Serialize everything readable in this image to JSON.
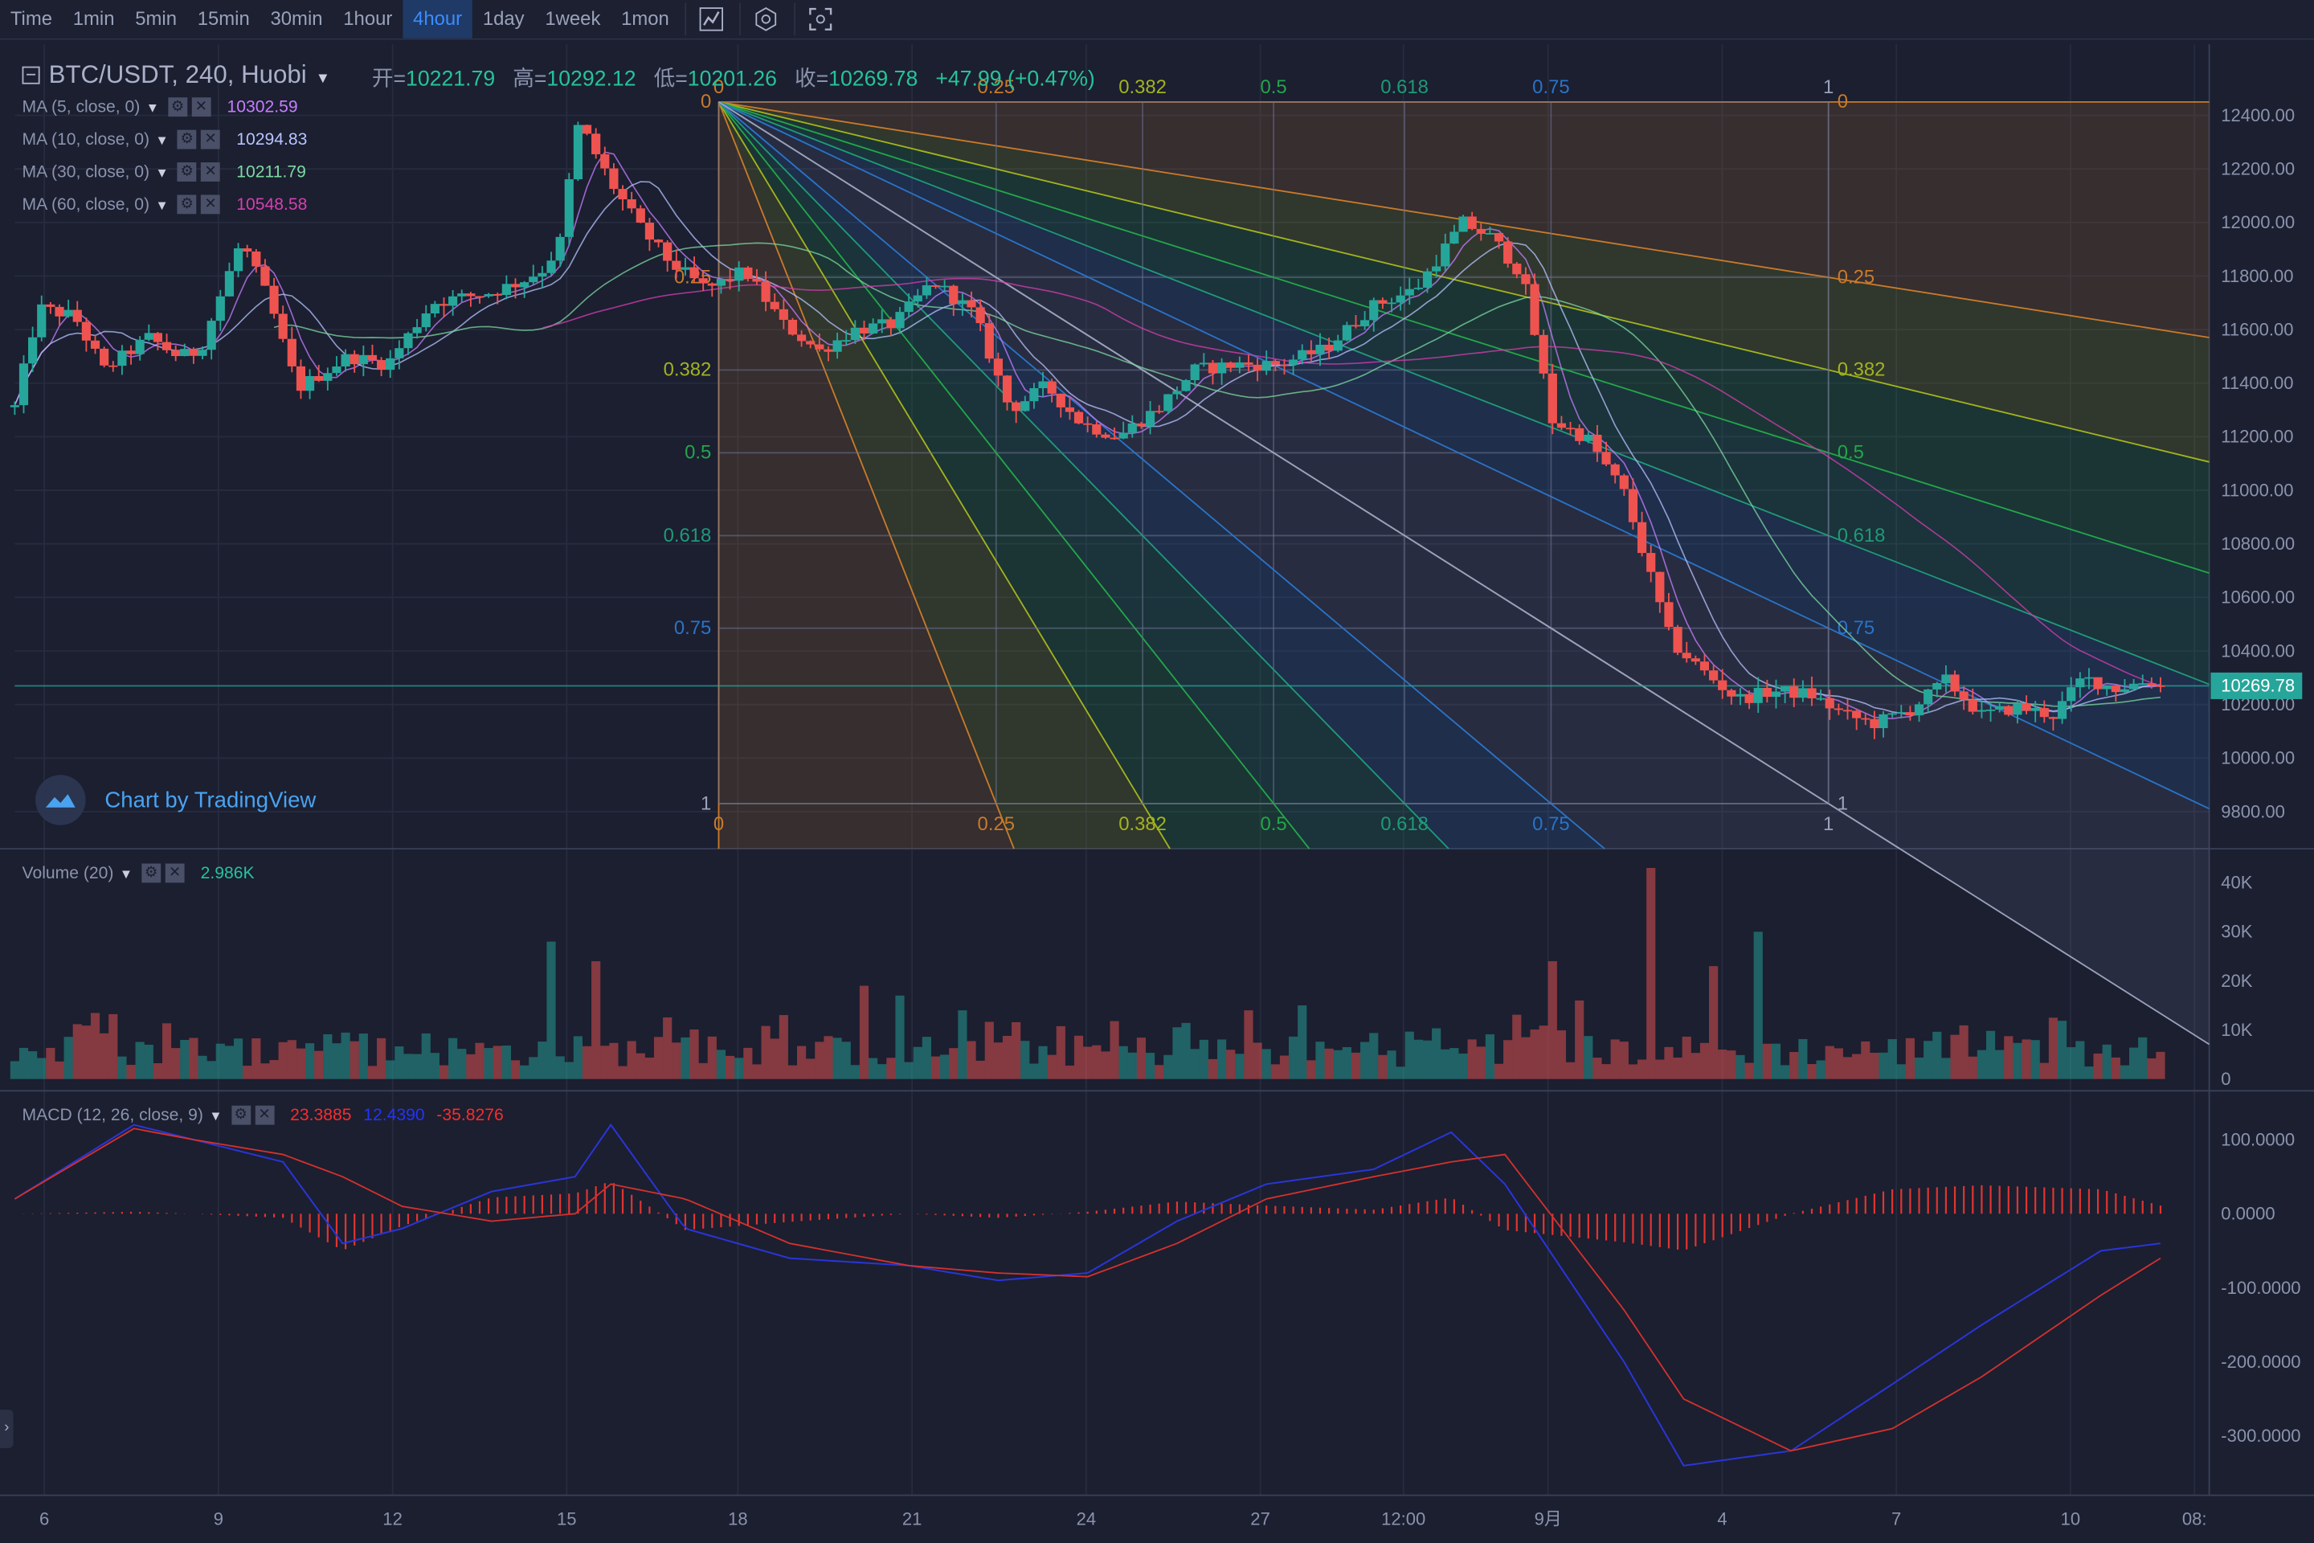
{
  "toolbar": {
    "items": [
      "Time",
      "1min",
      "5min",
      "15min",
      "30min",
      "1hour",
      "4hour",
      "1day",
      "1week",
      "1mon"
    ],
    "active": "4hour",
    "icons": [
      "indicator-icon",
      "settings-icon",
      "screenshot-icon"
    ]
  },
  "header": {
    "symbol": "BTC/USDT, 240, Huobi",
    "open_label": "开=",
    "open": "10221.79",
    "high_label": "高=",
    "high": "10292.12",
    "low_label": "低=",
    "low": "10201.26",
    "close_label": "收=",
    "close": "10269.78",
    "change": "+47.99 (+0.47%)"
  },
  "ma_legend": [
    {
      "name": "MA (5, close, 0)",
      "value": "10302.59",
      "color": "#c77dff"
    },
    {
      "name": "MA (10, close, 0)",
      "value": "10294.83",
      "color": "#b7c4ff"
    },
    {
      "name": "MA (30, close, 0)",
      "value": "10211.79",
      "color": "#7ed9a0"
    },
    {
      "name": "MA (60, close, 0)",
      "value": "10548.58",
      "color": "#d63fb0"
    }
  ],
  "volume_legend": {
    "name": "Volume (20)",
    "value": "2.986K",
    "color": "#26c39a"
  },
  "macd_legend": {
    "name": "MACD (12, 26, close, 9)",
    "values": [
      "23.3885",
      "12.4390",
      "-35.8276"
    ],
    "colors": [
      "#ff2a2a",
      "#2233ff",
      "#ff2a2a"
    ]
  },
  "watermark": "Chart by TradingView",
  "last_price": "10269.78",
  "colors": {
    "up": "#26a69a",
    "down": "#ef5350",
    "bg": "#1b1f30",
    "grid": "#2a2f45"
  },
  "chart_data": [
    {
      "type": "candlestick",
      "title": "BTC/USDT, 240, Huobi",
      "y_ticks": [
        "12400.00",
        "12200.00",
        "12000.00",
        "11800.00",
        "11600.00",
        "11400.00",
        "11200.00",
        "11000.00",
        "10800.00",
        "10600.00",
        "10400.00",
        "10200.00",
        "10000.00",
        "9800.00"
      ],
      "ylim": [
        9700,
        12500
      ],
      "x_ticks": [
        "6",
        "9",
        "12",
        "15",
        "18",
        "21",
        "24",
        "27",
        "12:00",
        "9月",
        "4",
        "7",
        "10",
        "08:"
      ],
      "last_price": 10269.78,
      "fib_levels": [
        "0",
        "0.25",
        "0.382",
        "0.5",
        "0.618",
        "0.75",
        "1"
      ],
      "fan_anchor": 12450,
      "fan_low": 9830,
      "keypoints": [
        [
          0,
          11310
        ],
        [
          8,
          11680
        ],
        [
          20,
          11650
        ],
        [
          30,
          11450
        ],
        [
          45,
          11570
        ],
        [
          55,
          11500
        ],
        [
          62,
          11520
        ],
        [
          76,
          11930
        ],
        [
          85,
          11720
        ],
        [
          95,
          11380
        ],
        [
          112,
          11500
        ],
        [
          125,
          11470
        ],
        [
          140,
          11700
        ],
        [
          160,
          11740
        ],
        [
          170,
          11780
        ],
        [
          178,
          11830
        ],
        [
          184,
          11950
        ],
        [
          188,
          12350
        ],
        [
          190,
          12360
        ],
        [
          200,
          12150
        ],
        [
          210,
          11980
        ],
        [
          220,
          11850
        ],
        [
          232,
          11750
        ],
        [
          245,
          11820
        ],
        [
          258,
          11620
        ],
        [
          270,
          11520
        ],
        [
          282,
          11600
        ],
        [
          295,
          11620
        ],
        [
          308,
          11780
        ],
        [
          322,
          11660
        ],
        [
          334,
          11300
        ],
        [
          346,
          11390
        ],
        [
          358,
          11250
        ],
        [
          370,
          11200
        ],
        [
          384,
          11310
        ],
        [
          396,
          11450
        ],
        [
          410,
          11470
        ],
        [
          424,
          11470
        ],
        [
          440,
          11530
        ],
        [
          456,
          11690
        ],
        [
          470,
          11750
        ],
        [
          486,
          12000
        ],
        [
          496,
          11940
        ],
        [
          506,
          11800
        ],
        [
          516,
          11260
        ],
        [
          528,
          11190
        ],
        [
          540,
          10990
        ],
        [
          556,
          10430
        ],
        [
          566,
          10330
        ],
        [
          578,
          10220
        ],
        [
          590,
          10250
        ],
        [
          602,
          10240
        ],
        [
          614,
          10160
        ],
        [
          624,
          10130
        ],
        [
          636,
          10180
        ],
        [
          648,
          10290
        ],
        [
          660,
          10160
        ],
        [
          672,
          10190
        ],
        [
          684,
          10160
        ],
        [
          694,
          10300
        ],
        [
          705,
          10260
        ],
        [
          716,
          10290
        ],
        [
          720,
          10270
        ]
      ],
      "ma_series": [
        {
          "name": "MA (5, close, 0)",
          "color": "#c77dff"
        },
        {
          "name": "MA (10, close, 0)",
          "color": "#b7c4ff"
        },
        {
          "name": "MA (30, close, 0)",
          "color": "#7ed9a0"
        },
        {
          "name": "MA (60, close, 0)",
          "color": "#d63fb0"
        }
      ]
    },
    {
      "type": "bar",
      "title": "Volume (20)",
      "y_ticks": [
        "40K",
        "30K",
        "20K",
        "10K",
        "0"
      ],
      "ylim": [
        0,
        43000
      ],
      "spikes": [
        [
          181,
          28000
        ],
        [
          194,
          24000
        ],
        [
          286,
          19000
        ],
        [
          298,
          17000
        ],
        [
          319,
          14000
        ],
        [
          413,
          14000
        ],
        [
          431,
          15000
        ],
        [
          516,
          24000
        ],
        [
          526,
          16000
        ],
        [
          548,
          43000
        ],
        [
          570,
          23000
        ],
        [
          586,
          30000
        ]
      ]
    },
    {
      "type": "line",
      "title": "MACD (12, 26, close, 9)",
      "y_ticks": [
        "100.0000",
        "0.0000",
        "-100.0000",
        "-200.0000",
        "-300.0000"
      ],
      "ylim": [
        -370,
        140
      ],
      "macd_points": [
        [
          0,
          20
        ],
        [
          40,
          120
        ],
        [
          60,
          100
        ],
        [
          90,
          70
        ],
        [
          110,
          -40
        ],
        [
          130,
          -20
        ],
        [
          160,
          30
        ],
        [
          188,
          50
        ],
        [
          200,
          120
        ],
        [
          225,
          -20
        ],
        [
          260,
          -60
        ],
        [
          300,
          -70
        ],
        [
          330,
          -90
        ],
        [
          360,
          -80
        ],
        [
          390,
          -10
        ],
        [
          420,
          40
        ],
        [
          456,
          60
        ],
        [
          482,
          110
        ],
        [
          500,
          40
        ],
        [
          540,
          -200
        ],
        [
          560,
          -340
        ],
        [
          596,
          -320
        ],
        [
          630,
          -230
        ],
        [
          660,
          -150
        ],
        [
          700,
          -50
        ],
        [
          720,
          -40
        ]
      ],
      "signal_points": [
        [
          0,
          20
        ],
        [
          40,
          115
        ],
        [
          60,
          100
        ],
        [
          90,
          80
        ],
        [
          110,
          50
        ],
        [
          130,
          10
        ],
        [
          160,
          -10
        ],
        [
          188,
          0
        ],
        [
          200,
          40
        ],
        [
          225,
          20
        ],
        [
          260,
          -40
        ],
        [
          300,
          -70
        ],
        [
          330,
          -80
        ],
        [
          360,
          -85
        ],
        [
          390,
          -40
        ],
        [
          420,
          20
        ],
        [
          456,
          50
        ],
        [
          482,
          70
        ],
        [
          500,
          80
        ],
        [
          540,
          -130
        ],
        [
          560,
          -250
        ],
        [
          596,
          -320
        ],
        [
          630,
          -290
        ],
        [
          660,
          -220
        ],
        [
          700,
          -110
        ],
        [
          720,
          -60
        ]
      ]
    }
  ]
}
